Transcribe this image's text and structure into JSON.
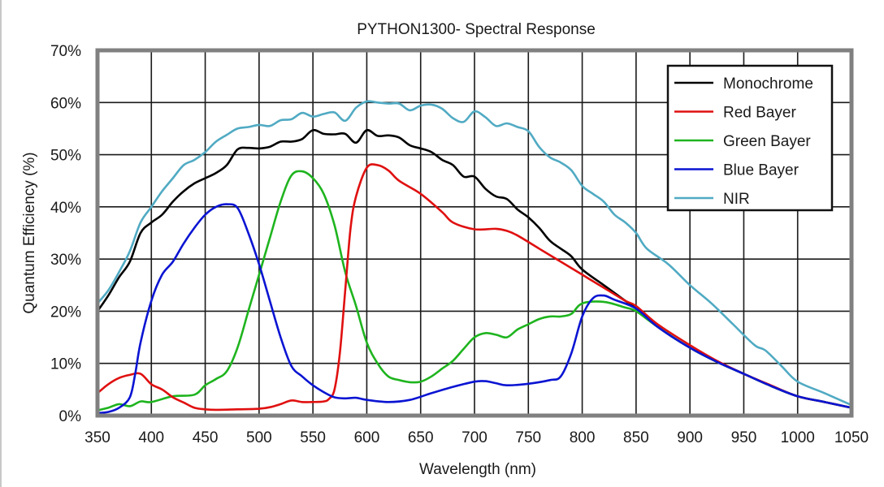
{
  "chart_data": {
    "type": "line",
    "title": "PYTHON1300- Spectral Response",
    "xlabel": "Wavelength (nm)",
    "ylabel": "Quantum Efficiency (%)",
    "xlim": [
      350,
      1050
    ],
    "ylim": [
      0,
      70
    ],
    "xticks": [
      350,
      400,
      450,
      500,
      550,
      600,
      650,
      700,
      750,
      800,
      850,
      900,
      950,
      1000,
      1050
    ],
    "yticks": [
      0,
      10,
      20,
      30,
      40,
      50,
      60,
      70
    ],
    "xtick_labels": [
      "350",
      "400",
      "450",
      "500",
      "550",
      "600",
      "650",
      "700",
      "750",
      "800",
      "850",
      "900",
      "950",
      "1000",
      "1050"
    ],
    "ytick_labels": [
      "0%",
      "10%",
      "20%",
      "30%",
      "40%",
      "50%",
      "60%",
      "70%"
    ],
    "grid": true,
    "legend_position": "top-right",
    "series": [
      {
        "name": "Monochrome",
        "color": "#000000",
        "points": [
          [
            350,
            20
          ],
          [
            360,
            23
          ],
          [
            370,
            26.5
          ],
          [
            380,
            29.5
          ],
          [
            390,
            35
          ],
          [
            400,
            37
          ],
          [
            410,
            38.5
          ],
          [
            420,
            41
          ],
          [
            430,
            43
          ],
          [
            440,
            44.5
          ],
          [
            450,
            45.5
          ],
          [
            460,
            46.5
          ],
          [
            470,
            48
          ],
          [
            480,
            51
          ],
          [
            490,
            51.3
          ],
          [
            500,
            51.2
          ],
          [
            510,
            51.5
          ],
          [
            520,
            52.5
          ],
          [
            530,
            52.5
          ],
          [
            540,
            53
          ],
          [
            550,
            54.7
          ],
          [
            560,
            54
          ],
          [
            570,
            53.9
          ],
          [
            580,
            54
          ],
          [
            590,
            52.3
          ],
          [
            600,
            54.7
          ],
          [
            610,
            53.6
          ],
          [
            620,
            53.7
          ],
          [
            630,
            53.3
          ],
          [
            640,
            51.8
          ],
          [
            650,
            51.2
          ],
          [
            660,
            50.5
          ],
          [
            670,
            49
          ],
          [
            680,
            48
          ],
          [
            690,
            45.8
          ],
          [
            700,
            45.8
          ],
          [
            710,
            43.5
          ],
          [
            720,
            42
          ],
          [
            730,
            41.5
          ],
          [
            740,
            39.5
          ],
          [
            750,
            38
          ],
          [
            760,
            36
          ],
          [
            770,
            33.5
          ],
          [
            780,
            32
          ],
          [
            790,
            30.5
          ],
          [
            800,
            28
          ],
          [
            820,
            25
          ],
          [
            840,
            22
          ],
          [
            850,
            20.5
          ],
          [
            860,
            19
          ],
          [
            870,
            17
          ],
          [
            900,
            13
          ],
          [
            925,
            10.3
          ],
          [
            950,
            8
          ],
          [
            975,
            5.7
          ],
          [
            1000,
            3.7
          ],
          [
            1025,
            2.6
          ],
          [
            1050,
            1.5
          ]
        ]
      },
      {
        "name": "Red Bayer",
        "color": "#e01010",
        "points": [
          [
            350,
            4.3
          ],
          [
            360,
            6
          ],
          [
            370,
            7.2
          ],
          [
            380,
            7.8
          ],
          [
            390,
            8
          ],
          [
            400,
            6
          ],
          [
            410,
            5
          ],
          [
            420,
            3.5
          ],
          [
            430,
            2.5
          ],
          [
            440,
            1.5
          ],
          [
            450,
            1.2
          ],
          [
            460,
            1.1
          ],
          [
            480,
            1.2
          ],
          [
            500,
            1.3
          ],
          [
            510,
            1.6
          ],
          [
            520,
            2.2
          ],
          [
            530,
            2.9
          ],
          [
            540,
            2.6
          ],
          [
            550,
            2.6
          ],
          [
            560,
            2.7
          ],
          [
            565,
            3.2
          ],
          [
            570,
            5
          ],
          [
            575,
            12
          ],
          [
            580,
            24
          ],
          [
            585,
            36
          ],
          [
            590,
            42
          ],
          [
            600,
            47.5
          ],
          [
            610,
            48
          ],
          [
            620,
            47
          ],
          [
            630,
            45
          ],
          [
            650,
            42.5
          ],
          [
            670,
            39
          ],
          [
            680,
            37
          ],
          [
            700,
            35.7
          ],
          [
            720,
            35.8
          ],
          [
            730,
            35.4
          ],
          [
            740,
            34.5
          ],
          [
            760,
            32
          ],
          [
            780,
            29.5
          ],
          [
            800,
            27
          ],
          [
            820,
            24.5
          ],
          [
            840,
            22
          ],
          [
            850,
            21
          ],
          [
            870,
            17.5
          ],
          [
            900,
            13.5
          ],
          [
            925,
            10.5
          ],
          [
            950,
            8
          ],
          [
            975,
            5.8
          ],
          [
            1000,
            3.7
          ],
          [
            1025,
            2.6
          ],
          [
            1050,
            1.5
          ]
        ]
      },
      {
        "name": "Green Bayer",
        "color": "#1eb41e",
        "points": [
          [
            350,
            1
          ],
          [
            360,
            1.5
          ],
          [
            370,
            2.2
          ],
          [
            380,
            1.8
          ],
          [
            390,
            2.7
          ],
          [
            400,
            2.6
          ],
          [
            420,
            3.7
          ],
          [
            440,
            4
          ],
          [
            450,
            5.8
          ],
          [
            460,
            7
          ],
          [
            470,
            8.5
          ],
          [
            480,
            13
          ],
          [
            490,
            20
          ],
          [
            500,
            27
          ],
          [
            510,
            34
          ],
          [
            520,
            41
          ],
          [
            530,
            46
          ],
          [
            540,
            46.8
          ],
          [
            550,
            45.5
          ],
          [
            560,
            42.5
          ],
          [
            570,
            36.5
          ],
          [
            580,
            27.5
          ],
          [
            590,
            21
          ],
          [
            600,
            14
          ],
          [
            610,
            10
          ],
          [
            620,
            7.5
          ],
          [
            630,
            6.8
          ],
          [
            640,
            6.4
          ],
          [
            650,
            6.5
          ],
          [
            660,
            7.5
          ],
          [
            670,
            9
          ],
          [
            680,
            10.5
          ],
          [
            690,
            12.8
          ],
          [
            700,
            15
          ],
          [
            710,
            15.8
          ],
          [
            720,
            15.5
          ],
          [
            730,
            15
          ],
          [
            740,
            16.5
          ],
          [
            750,
            17.5
          ],
          [
            760,
            18.5
          ],
          [
            770,
            19
          ],
          [
            780,
            19
          ],
          [
            790,
            19.5
          ],
          [
            800,
            21.5
          ],
          [
            820,
            21.8
          ],
          [
            840,
            20.7
          ],
          [
            850,
            20
          ],
          [
            870,
            17
          ],
          [
            900,
            13
          ],
          [
            925,
            10.3
          ],
          [
            950,
            8
          ],
          [
            975,
            5.7
          ],
          [
            1000,
            3.7
          ],
          [
            1025,
            2.6
          ],
          [
            1050,
            1.5
          ]
        ]
      },
      {
        "name": "Blue Bayer",
        "color": "#0a14d2",
        "points": [
          [
            350,
            0.5
          ],
          [
            360,
            0.7
          ],
          [
            370,
            1.5
          ],
          [
            380,
            3.5
          ],
          [
            385,
            8
          ],
          [
            390,
            14
          ],
          [
            400,
            22
          ],
          [
            410,
            27
          ],
          [
            420,
            29.5
          ],
          [
            430,
            33
          ],
          [
            440,
            36
          ],
          [
            450,
            38.5
          ],
          [
            460,
            40
          ],
          [
            470,
            40.5
          ],
          [
            480,
            39.8
          ],
          [
            490,
            35
          ],
          [
            500,
            29
          ],
          [
            510,
            22
          ],
          [
            520,
            15
          ],
          [
            530,
            9.5
          ],
          [
            540,
            7.5
          ],
          [
            550,
            5.8
          ],
          [
            560,
            4.5
          ],
          [
            570,
            3.5
          ],
          [
            580,
            3.3
          ],
          [
            590,
            3.4
          ],
          [
            600,
            3
          ],
          [
            620,
            2.6
          ],
          [
            640,
            3
          ],
          [
            660,
            4.3
          ],
          [
            680,
            5.5
          ],
          [
            700,
            6.5
          ],
          [
            710,
            6.6
          ],
          [
            720,
            6.2
          ],
          [
            730,
            5.8
          ],
          [
            750,
            6.1
          ],
          [
            770,
            6.8
          ],
          [
            780,
            7.5
          ],
          [
            790,
            12
          ],
          [
            800,
            19
          ],
          [
            810,
            22.5
          ],
          [
            820,
            23
          ],
          [
            830,
            22.2
          ],
          [
            850,
            20.5
          ],
          [
            870,
            17
          ],
          [
            900,
            13
          ],
          [
            925,
            10.3
          ],
          [
            950,
            8
          ],
          [
            975,
            5.7
          ],
          [
            1000,
            3.7
          ],
          [
            1025,
            2.6
          ],
          [
            1050,
            1.5
          ]
        ]
      },
      {
        "name": "NIR",
        "color": "#50aac3",
        "points": [
          [
            350,
            21.5
          ],
          [
            360,
            24
          ],
          [
            370,
            27.5
          ],
          [
            380,
            31.5
          ],
          [
            390,
            37
          ],
          [
            400,
            40
          ],
          [
            410,
            43
          ],
          [
            420,
            45.5
          ],
          [
            430,
            48
          ],
          [
            440,
            49
          ],
          [
            450,
            50.5
          ],
          [
            460,
            52.5
          ],
          [
            470,
            53.8
          ],
          [
            480,
            55
          ],
          [
            490,
            55.3
          ],
          [
            500,
            55.7
          ],
          [
            510,
            55.5
          ],
          [
            520,
            56.6
          ],
          [
            530,
            56.8
          ],
          [
            540,
            58
          ],
          [
            550,
            57.3
          ],
          [
            560,
            57.8
          ],
          [
            570,
            58.1
          ],
          [
            580,
            56.5
          ],
          [
            590,
            59
          ],
          [
            600,
            60.2
          ],
          [
            610,
            60
          ],
          [
            620,
            59.8
          ],
          [
            630,
            59.8
          ],
          [
            640,
            58.5
          ],
          [
            650,
            59.4
          ],
          [
            660,
            59.6
          ],
          [
            670,
            58.8
          ],
          [
            680,
            57
          ],
          [
            690,
            56.3
          ],
          [
            700,
            58.3
          ],
          [
            710,
            57.2
          ],
          [
            720,
            55.5
          ],
          [
            730,
            56
          ],
          [
            740,
            55.3
          ],
          [
            750,
            54.5
          ],
          [
            760,
            51.5
          ],
          [
            770,
            49.5
          ],
          [
            780,
            48.5
          ],
          [
            790,
            47
          ],
          [
            800,
            44
          ],
          [
            810,
            42.5
          ],
          [
            820,
            41
          ],
          [
            830,
            38.5
          ],
          [
            840,
            37
          ],
          [
            850,
            35
          ],
          [
            860,
            32
          ],
          [
            880,
            29
          ],
          [
            900,
            25
          ],
          [
            920,
            21.5
          ],
          [
            940,
            17.5
          ],
          [
            960,
            13.5
          ],
          [
            970,
            12.5
          ],
          [
            985,
            9.5
          ],
          [
            1000,
            6.5
          ],
          [
            1025,
            4.3
          ],
          [
            1050,
            2
          ]
        ]
      }
    ]
  }
}
